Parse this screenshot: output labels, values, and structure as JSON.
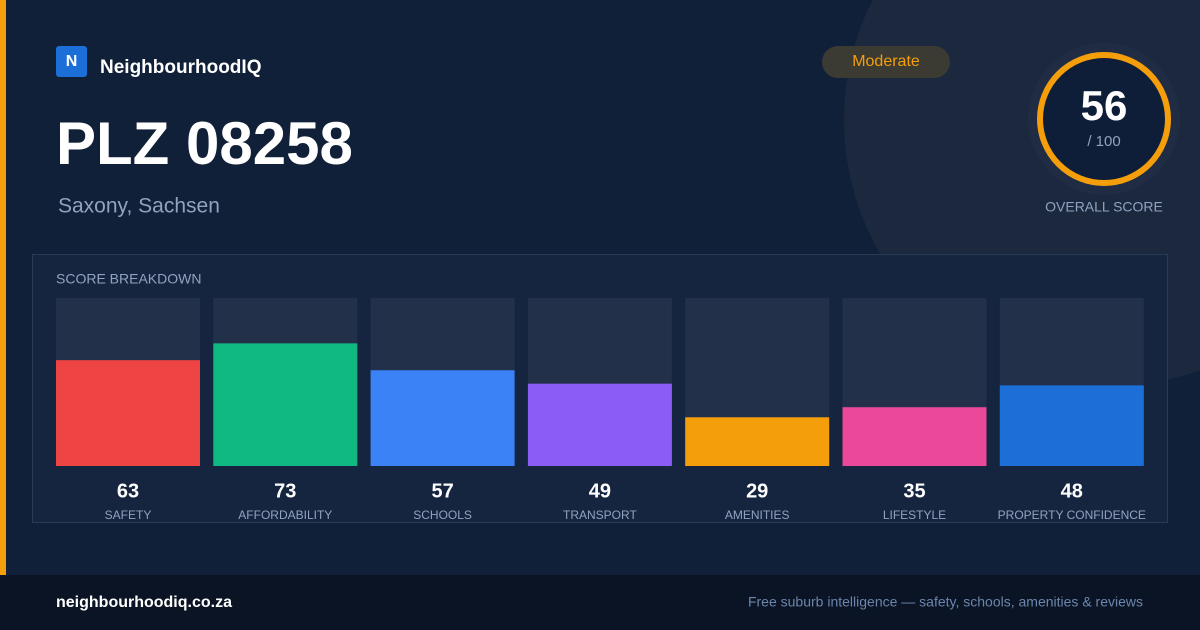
{
  "brand": {
    "logo": "N",
    "name": "NeighbourhoodIQ"
  },
  "badge": "Moderate",
  "title": "PLZ 08258",
  "subtitle": "Saxony, Sachsen",
  "score": {
    "value": 56,
    "scale_label": "/ 100",
    "caption": "OVERALL SCORE"
  },
  "chart_data": {
    "type": "bar",
    "title": "SCORE BREAKDOWN",
    "categories": [
      "SAFETY",
      "AFFORDABILITY",
      "SCHOOLS",
      "TRANSPORT",
      "AMENITIES",
      "LIFESTYLE",
      "PROPERTY CONFIDENCE"
    ],
    "values": [
      63,
      73,
      57,
      49,
      29,
      35,
      48
    ],
    "colors": [
      "#ef4444",
      "#10b981",
      "#3b82f6",
      "#8b5cf6",
      "#f59e0b",
      "#ec4899",
      "#1d6fd8"
    ],
    "ylim": [
      0,
      100
    ]
  },
  "footer": {
    "domain": "neighbourhoodiq.co.za",
    "tagline": "Free suburb intelligence — safety, schools, amenities & reviews"
  }
}
